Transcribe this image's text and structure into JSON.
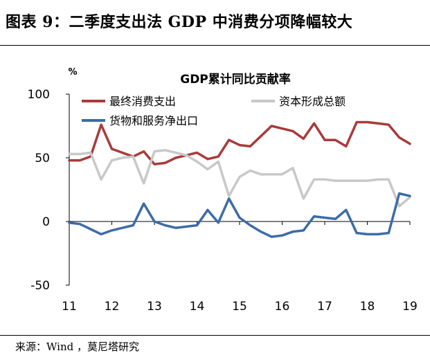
{
  "header": {
    "figure_title": "图表 9：二季度支出法 GDP 中消费分项降幅较大"
  },
  "footer": {
    "source": "来源：Wind ，莫尼塔研究"
  },
  "chart_data": {
    "type": "line",
    "title": "GDP累计同比贡献率",
    "unit_label": "%",
    "xlabel": "",
    "ylabel": "",
    "ylim": [
      -50,
      100
    ],
    "yticks": [
      -50,
      0,
      50,
      100
    ],
    "x_tick_labels": [
      "11",
      "12",
      "13",
      "14",
      "15",
      "16",
      "17",
      "18",
      "19"
    ],
    "x_start_year": 2011,
    "periods_per_year": 4,
    "grid": false,
    "legend_position": "top-left",
    "series": [
      {
        "name": "最终消费支出",
        "color": "#A93A3A",
        "values": [
          48,
          48,
          51,
          76,
          57,
          54,
          51,
          55,
          45,
          46,
          50,
          52,
          54,
          49,
          51,
          64,
          60,
          59,
          67,
          75,
          73,
          71,
          65,
          77,
          64,
          64,
          59,
          78,
          78,
          77,
          76,
          66,
          61
        ]
      },
      {
        "name": "资本形成总额",
        "color": "#C8C8C8",
        "values": [
          53,
          53,
          54,
          33,
          48,
          50,
          51,
          30,
          55,
          56,
          54,
          52,
          47,
          41,
          47,
          20,
          35,
          40,
          37,
          37,
          37,
          42,
          18,
          33,
          33,
          32,
          32,
          32,
          32,
          33,
          33,
          12,
          19
        ]
      },
      {
        "name": "货物和服务净出口",
        "color": "#3C6CA7",
        "values": [
          -1,
          -2,
          -6,
          -10,
          -7,
          -5,
          -3,
          14,
          0,
          -3,
          -5,
          -4,
          -3,
          9,
          -1,
          18,
          3,
          -3,
          -8,
          -12,
          -11,
          -8,
          -7,
          4,
          3,
          2,
          9,
          -9,
          -10,
          -10,
          -9,
          22,
          20
        ]
      }
    ]
  }
}
